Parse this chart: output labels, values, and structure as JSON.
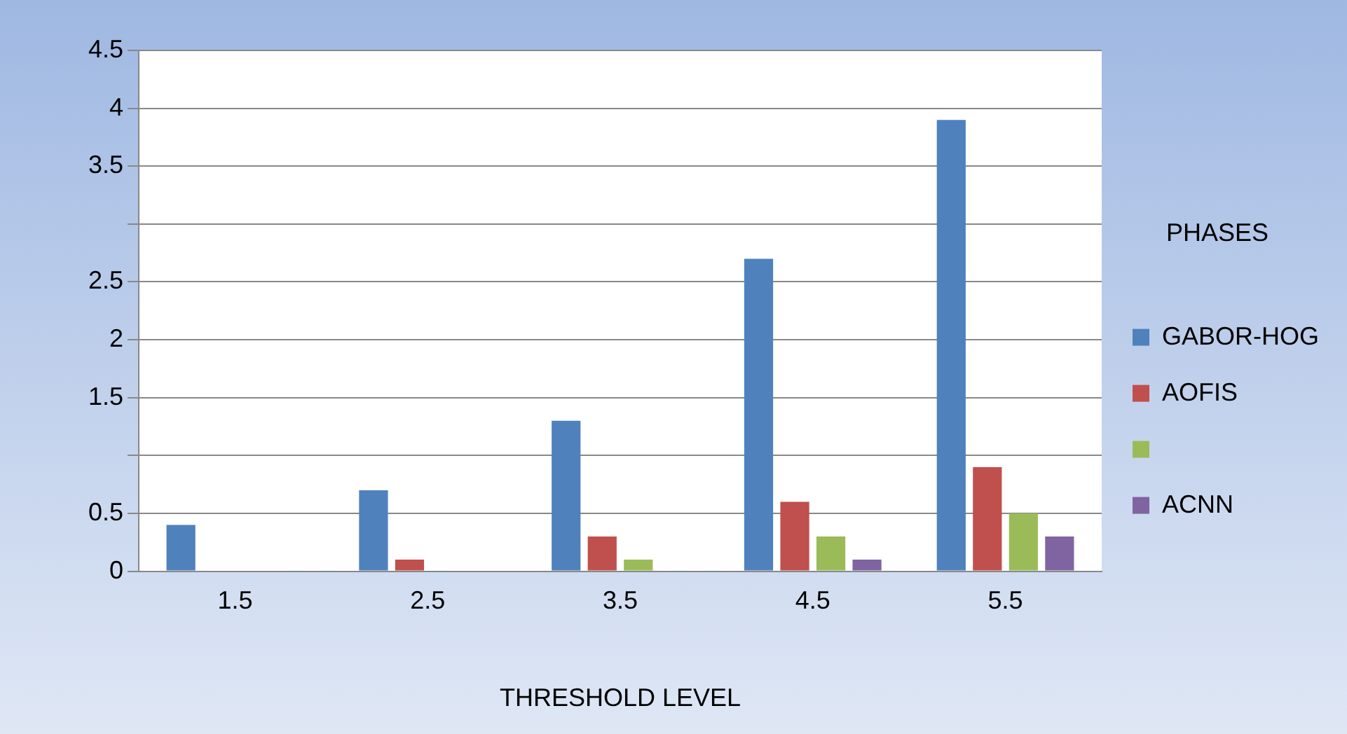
{
  "chart_data": {
    "type": "bar",
    "xlabel": "THRESHOLD LEVEL",
    "legend_title": "PHASES",
    "legend": "right",
    "grid": "y",
    "categories": [
      "1.5",
      "2.5",
      "3.5",
      "4.5",
      "5.5"
    ],
    "series": [
      {
        "name": "GABOR-HOG",
        "color": "#4f81bd",
        "values": [
          0.4,
          0.7,
          1.3,
          2.7,
          3.9
        ]
      },
      {
        "name": "AOFIS",
        "color": "#c0504d",
        "values": [
          0,
          0.1,
          0.3,
          0.6,
          0.9
        ]
      },
      {
        "color": "#9bbb59",
        "values": [
          0,
          0,
          0.1,
          0.3,
          0.5
        ]
      },
      {
        "name": "ACNN",
        "color": "#8064a2",
        "values": [
          0,
          0,
          0,
          0.1,
          0.3
        ]
      }
    ],
    "ylim": [
      0,
      4.5
    ],
    "yticks": [
      0,
      0.5,
      {
        "value": 1,
        "label": null
      },
      1.5,
      2,
      2.5,
      {
        "value": 3,
        "label": null
      },
      3.5,
      4,
      4.5
    ]
  }
}
